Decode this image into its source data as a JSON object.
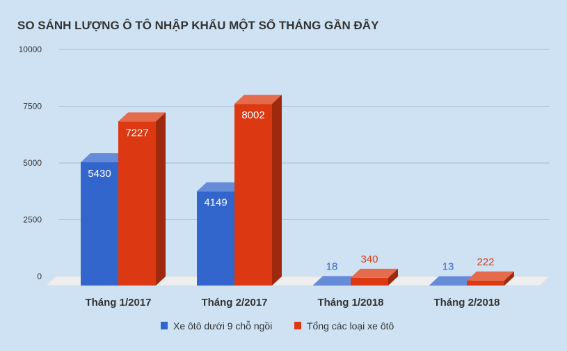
{
  "chart_data": {
    "type": "bar",
    "title": "SO SÁNH LƯỢNG Ô TÔ NHẬP KHẨU MỘT SỐ THÁNG GẦN ĐÂY",
    "categories": [
      "Tháng 1/2017",
      "Tháng 2/2017",
      "Tháng 1/2018",
      "Tháng 2/2018"
    ],
    "series": [
      {
        "name": "Xe ôtô dưới 9 chỗ ngồi",
        "values": [
          5430,
          4149,
          18,
          13
        ],
        "color": "#3366cc"
      },
      {
        "name": "Tổng các loại xe ôtô",
        "values": [
          7227,
          8002,
          340,
          222
        ],
        "color": "#dc3912"
      }
    ],
    "y_ticks": [
      "0",
      "2500",
      "5000",
      "7500",
      "10000"
    ],
    "ylim": [
      0,
      10000
    ],
    "grid": true,
    "legend": "bottom",
    "style": "3d-bar"
  }
}
